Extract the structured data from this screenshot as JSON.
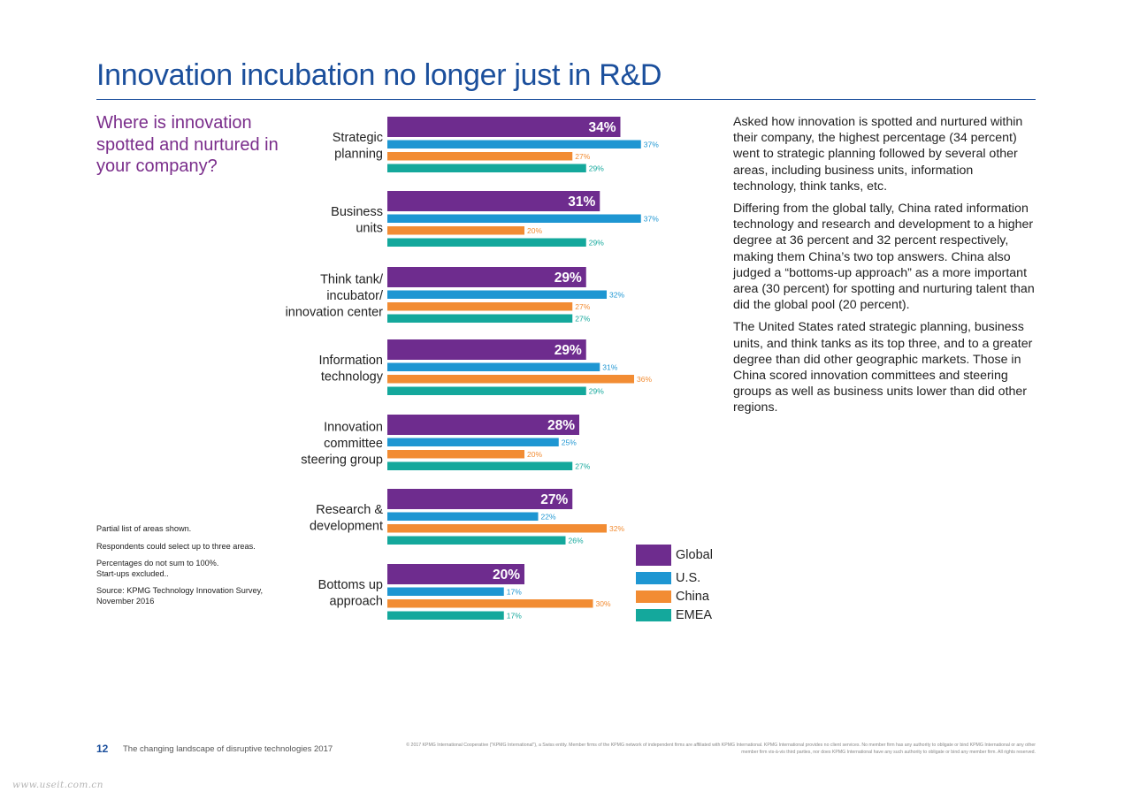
{
  "title": "Innovation incubation no longer just in R&D",
  "subtitle": "Where is innovation spotted and nurtured in your company?",
  "notes": [
    "Partial list of areas shown.",
    "Respondents could select up to three areas.",
    "Percentages do not sum to 100%.\nStart-ups excluded..",
    "Source: KPMG Technology Innovation Survey,\nNovember 2016"
  ],
  "body_paragraphs": [
    "Asked how innovation is spotted and nurtured within their company, the highest percentage (34 percent) went to strategic planning followed by several other areas, including business units, information technology, think tanks, etc.",
    "Differing from the global tally, China rated information technology and research and development to a higher degree at 36 percent and 32 percent respectively, making them China’s two top answers. China also judged a “bottoms-up approach” as a more important area (30 percent) for spotting and nurturing talent than did the global pool (20 percent).",
    "The United States rated strategic planning, business units, and think tanks as its top three, and to a greater degree than did other geographic markets. Those in China scored innovation committees and steering groups as well as business units lower than did other regions."
  ],
  "footer": {
    "page_number": "12",
    "doc_title": "The changing landscape of disruptive technologies 2017",
    "legal": "© 2017 KPMG International Cooperative (\"KPMG International\"), a Swiss entity. Member firms of the KPMG network of independent firms are affiliated with KPMG International. KPMG International provides no client services. No member firm has any authority to obligate or bind KPMG International or any other member firm vis-à-vis third parties, nor does KPMG International have any such authority to obligate or bind any member firm. All rights reserved."
  },
  "watermark": "www.useit.com.cn",
  "colors": {
    "title": "#1b4f9c",
    "subtitle": "#7a2d8b",
    "Global": "#6e2c8e",
    "U.S.": "#1e96d2",
    "China": "#f28c33",
    "EMEA": "#14a89c"
  },
  "chart_data": {
    "type": "bar",
    "orientation": "horizontal",
    "value_suffix": "%",
    "categories": [
      "Strategic\nplanning",
      "Business\nunits",
      "Think tank/\nincubator/\ninnovation center",
      "Information\ntechnology",
      "Innovation\ncommittee\nsteering group",
      "Research &\ndevelopment",
      "Bottoms up\napproach"
    ],
    "series": [
      {
        "name": "Global",
        "values": [
          34,
          31,
          29,
          29,
          28,
          27,
          20
        ]
      },
      {
        "name": "U.S.",
        "values": [
          37,
          37,
          32,
          31,
          25,
          22,
          17
        ]
      },
      {
        "name": "China",
        "values": [
          27,
          20,
          27,
          36,
          20,
          32,
          30
        ]
      },
      {
        "name": "EMEA",
        "values": [
          29,
          29,
          27,
          29,
          27,
          26,
          17
        ]
      }
    ],
    "legend": [
      "Global",
      "U.S.",
      "China",
      "EMEA"
    ]
  }
}
